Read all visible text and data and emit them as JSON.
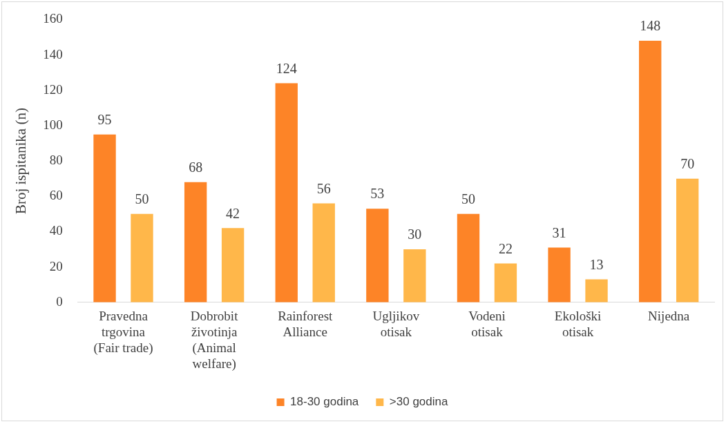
{
  "chart_data": {
    "type": "bar",
    "ylabel": "Broj ispitanika (n)",
    "categories": [
      "Pravedna trgovina (Fair trade)",
      "Dobrobit životinja (Animal welfare)",
      "Rainforest Alliance",
      "Ugljikov otisak",
      "Vodeni otisak",
      "Ekološki otisak",
      "Nijedna"
    ],
    "series": [
      {
        "name": "18-30 godina",
        "color": "#fd8427",
        "values": [
          95,
          68,
          124,
          53,
          50,
          31,
          148
        ]
      },
      {
        "name": ">30 godina",
        "color": "#ffb74a",
        "values": [
          50,
          42,
          56,
          30,
          22,
          13,
          70
        ]
      }
    ],
    "ylim": [
      0,
      160
    ],
    "yticks": [
      0,
      20,
      40,
      60,
      80,
      100,
      120,
      140,
      160
    ],
    "grid": false,
    "legend": "bottom",
    "data_labels": true
  }
}
